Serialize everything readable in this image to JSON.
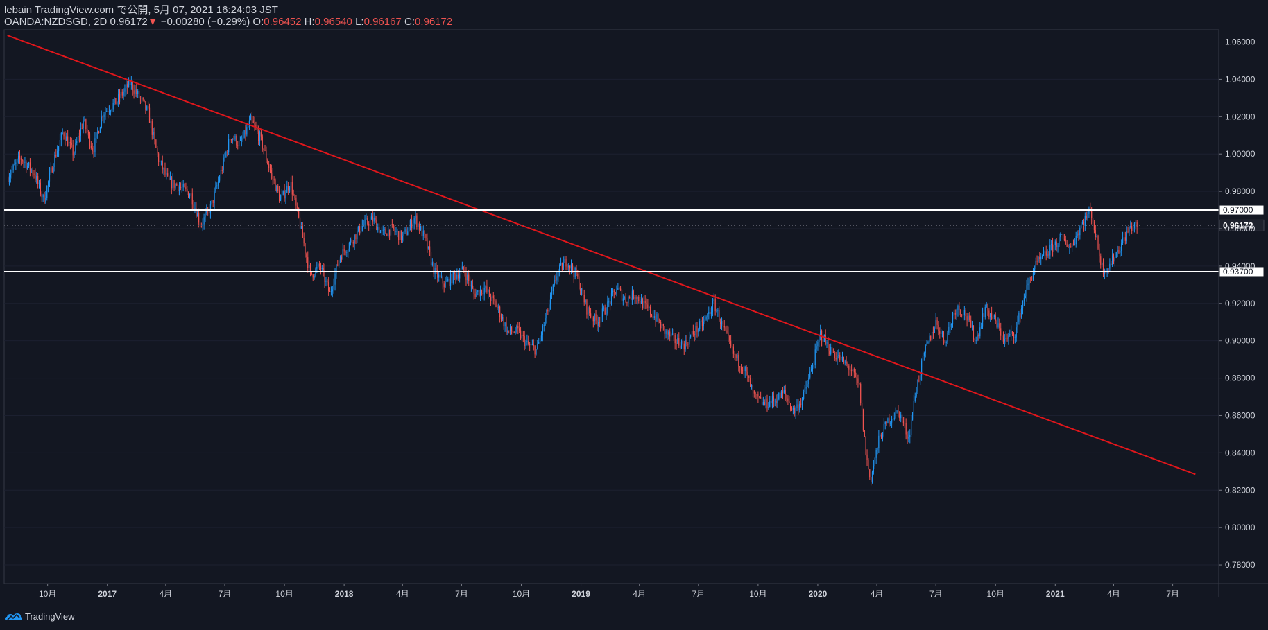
{
  "header": {
    "line1": "lebain TradingView.com で公開, 5月 07, 2021 16:24:03 JST",
    "symbol": "OANDA:NZDSGD, 2D",
    "last": "0.96172",
    "down_arrow": "▼",
    "change": "−0.00280 (−0.29%)",
    "o_label": "O:",
    "o_value": "0.96452",
    "h_label": "H:",
    "h_value": "0.96540",
    "l_label": "L:",
    "l_value": "0.96167",
    "c_label": "C:",
    "c_value": "0.96172"
  },
  "footer": {
    "brand": "TradingView"
  },
  "colors": {
    "background": "#131722",
    "up": "#2196f3",
    "down": "#ef5350",
    "trendline": "#e0161b",
    "hline": "#ffffff",
    "axis_text": "#d1d4dc"
  },
  "chart_data": {
    "type": "candlestick",
    "symbol": "OANDA:NZDSGD",
    "interval": "2D",
    "ylim": [
      0.77,
      1.0665
    ],
    "y_ticks": [
      "1.06000",
      "1.04000",
      "1.02000",
      "1.00000",
      "0.98000",
      "0.96000",
      "0.94000",
      "0.92000",
      "0.90000",
      "0.88000",
      "0.86000",
      "0.84000",
      "0.82000",
      "0.80000",
      "0.78000"
    ],
    "x_ticks": [
      "10月",
      "2017",
      "4月",
      "7月",
      "10月",
      "2018",
      "4月",
      "7月",
      "10月",
      "2019",
      "4月",
      "7月",
      "10月",
      "2020",
      "4月",
      "7月",
      "10月",
      "2021",
      "4月",
      "7月"
    ],
    "close_path": [
      [
        "2016-08-01",
        0.988
      ],
      [
        "2016-08-20",
        0.998
      ],
      [
        "2016-09-10",
        0.99
      ],
      [
        "2016-09-25",
        0.975
      ],
      [
        "2016-10-10",
        0.996
      ],
      [
        "2016-10-25",
        1.012
      ],
      [
        "2016-11-10",
        1.0
      ],
      [
        "2016-11-25",
        1.018
      ],
      [
        "2016-12-10",
        1.002
      ],
      [
        "2016-12-25",
        1.022
      ],
      [
        "2017-01-15",
        1.028
      ],
      [
        "2017-02-05",
        1.038
      ],
      [
        "2017-02-20",
        1.03
      ],
      [
        "2017-03-05",
        1.022
      ],
      [
        "2017-03-20",
        0.998
      ],
      [
        "2017-04-05",
        0.985
      ],
      [
        "2017-04-20",
        0.983
      ],
      [
        "2017-05-10",
        0.978
      ],
      [
        "2017-05-25",
        0.962
      ],
      [
        "2017-06-10",
        0.972
      ],
      [
        "2017-06-25",
        0.99
      ],
      [
        "2017-07-10",
        1.01
      ],
      [
        "2017-07-25",
        1.005
      ],
      [
        "2017-08-10",
        1.018
      ],
      [
        "2017-08-25",
        1.008
      ],
      [
        "2017-09-10",
        0.99
      ],
      [
        "2017-09-25",
        0.975
      ],
      [
        "2017-10-10",
        0.985
      ],
      [
        "2017-10-25",
        0.962
      ],
      [
        "2017-11-10",
        0.935
      ],
      [
        "2017-11-25",
        0.94
      ],
      [
        "2017-12-10",
        0.925
      ],
      [
        "2017-12-25",
        0.945
      ],
      [
        "2018-01-15",
        0.955
      ],
      [
        "2018-01-30",
        0.962
      ],
      [
        "2018-02-15",
        0.965
      ],
      [
        "2018-03-01",
        0.957
      ],
      [
        "2018-03-15",
        0.96
      ],
      [
        "2018-04-01",
        0.955
      ],
      [
        "2018-04-20",
        0.966
      ],
      [
        "2018-05-05",
        0.955
      ],
      [
        "2018-05-20",
        0.937
      ],
      [
        "2018-06-05",
        0.93
      ],
      [
        "2018-06-20",
        0.935
      ],
      [
        "2018-07-05",
        0.938
      ],
      [
        "2018-07-20",
        0.925
      ],
      [
        "2018-08-05",
        0.928
      ],
      [
        "2018-08-25",
        0.918
      ],
      [
        "2018-09-10",
        0.905
      ],
      [
        "2018-09-25",
        0.905
      ],
      [
        "2018-10-10",
        0.898
      ],
      [
        "2018-10-25",
        0.895
      ],
      [
        "2018-11-10",
        0.915
      ],
      [
        "2018-11-25",
        0.936
      ],
      [
        "2018-12-10",
        0.943
      ],
      [
        "2018-12-25",
        0.935
      ],
      [
        "2019-01-10",
        0.917
      ],
      [
        "2019-01-25",
        0.91
      ],
      [
        "2019-02-10",
        0.918
      ],
      [
        "2019-02-25",
        0.928
      ],
      [
        "2019-03-10",
        0.922
      ],
      [
        "2019-03-25",
        0.925
      ],
      [
        "2019-04-10",
        0.918
      ],
      [
        "2019-04-25",
        0.913
      ],
      [
        "2019-05-10",
        0.905
      ],
      [
        "2019-05-25",
        0.9
      ],
      [
        "2019-06-10",
        0.898
      ],
      [
        "2019-06-25",
        0.905
      ],
      [
        "2019-07-10",
        0.91
      ],
      [
        "2019-07-25",
        0.92
      ],
      [
        "2019-08-10",
        0.905
      ],
      [
        "2019-08-25",
        0.892
      ],
      [
        "2019-09-10",
        0.885
      ],
      [
        "2019-09-25",
        0.87
      ],
      [
        "2019-10-10",
        0.866
      ],
      [
        "2019-10-25",
        0.868
      ],
      [
        "2019-11-10",
        0.872
      ],
      [
        "2019-11-25",
        0.862
      ],
      [
        "2019-12-10",
        0.87
      ],
      [
        "2019-12-25",
        0.888
      ],
      [
        "2020-01-05",
        0.904
      ],
      [
        "2020-01-20",
        0.895
      ],
      [
        "2020-02-05",
        0.89
      ],
      [
        "2020-02-20",
        0.885
      ],
      [
        "2020-03-05",
        0.875
      ],
      [
        "2020-03-15",
        0.84
      ],
      [
        "2020-03-22",
        0.825
      ],
      [
        "2020-04-05",
        0.848
      ],
      [
        "2020-04-20",
        0.858
      ],
      [
        "2020-05-05",
        0.862
      ],
      [
        "2020-05-20",
        0.848
      ],
      [
        "2020-06-01",
        0.875
      ],
      [
        "2020-06-15",
        0.895
      ],
      [
        "2020-07-01",
        0.91
      ],
      [
        "2020-07-15",
        0.9
      ],
      [
        "2020-08-01",
        0.918
      ],
      [
        "2020-08-15",
        0.915
      ],
      [
        "2020-09-01",
        0.9
      ],
      [
        "2020-09-15",
        0.918
      ],
      [
        "2020-10-01",
        0.91
      ],
      [
        "2020-10-15",
        0.9
      ],
      [
        "2020-11-01",
        0.905
      ],
      [
        "2020-11-15",
        0.925
      ],
      [
        "2020-12-01",
        0.94
      ],
      [
        "2020-12-20",
        0.947
      ],
      [
        "2021-01-10",
        0.955
      ],
      [
        "2021-01-25",
        0.95
      ],
      [
        "2021-02-10",
        0.962
      ],
      [
        "2021-02-25",
        0.97
      ],
      [
        "2021-03-05",
        0.955
      ],
      [
        "2021-03-15",
        0.938
      ],
      [
        "2021-03-25",
        0.94
      ],
      [
        "2021-04-10",
        0.95
      ],
      [
        "2021-04-25",
        0.96
      ],
      [
        "2021-05-07",
        0.96172
      ]
    ],
    "trendline": {
      "from": [
        "2016-07-31",
        1.0635
      ],
      "to": [
        "2021-08-05",
        0.8285
      ]
    },
    "horizontal_levels": [
      "0.97000",
      "0.93700"
    ],
    "last_price": "0.96172"
  }
}
